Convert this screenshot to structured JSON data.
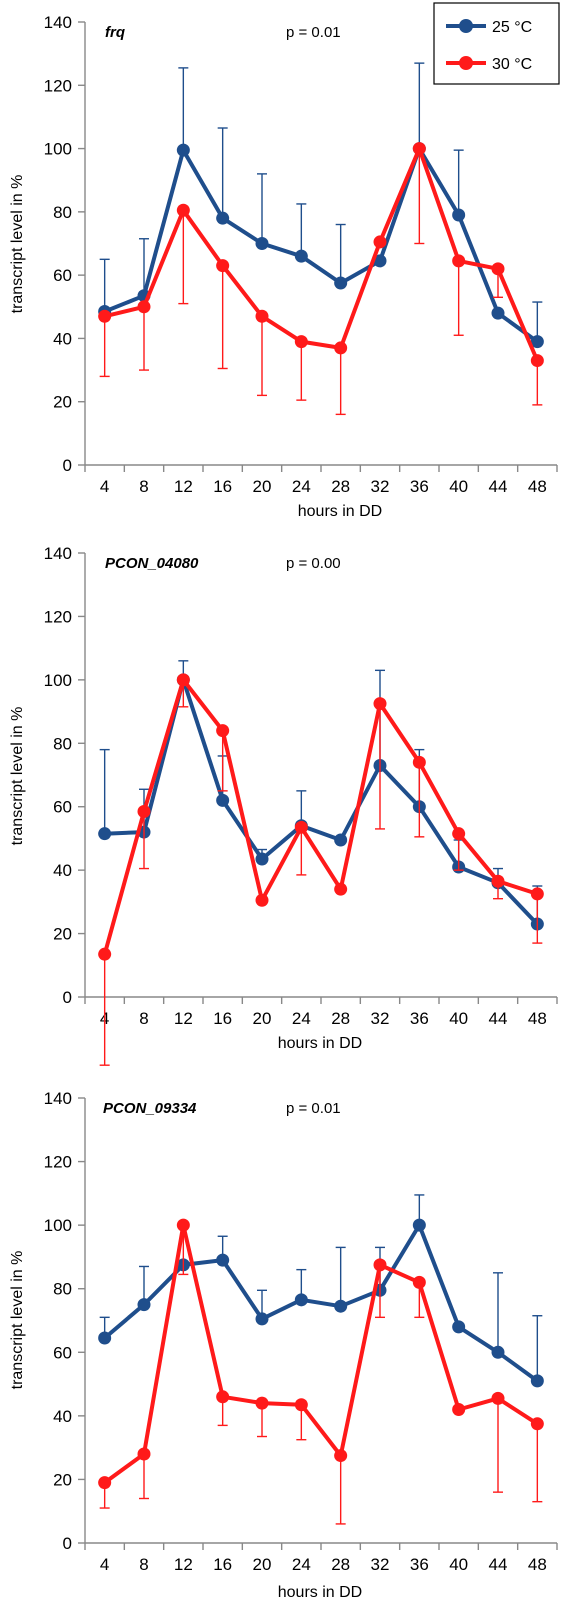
{
  "colors": {
    "s25": "#1f4e8c",
    "s30": "#ff1a1a",
    "axis": "#888888"
  },
  "legend": [
    {
      "name": "25 °C",
      "color": "#1f4e8c"
    },
    {
      "name": "30 °C",
      "color": "#ff1a1a"
    }
  ],
  "chart_data": [
    {
      "type": "line",
      "title": "frq",
      "annotation": "p = 0.01",
      "xlabel": "hours in DD",
      "ylabel": "transcript level in %",
      "x": [
        4,
        8,
        12,
        16,
        20,
        24,
        28,
        32,
        36,
        40,
        44,
        48
      ],
      "ylim": [
        0,
        140
      ],
      "yticks": [
        0,
        20,
        40,
        60,
        80,
        100,
        120,
        140
      ],
      "legend_position": "top-right",
      "series": [
        {
          "name": "25 °C",
          "values": [
            48.5,
            53.5,
            99.5,
            78,
            70,
            66,
            57.5,
            64.5,
            100,
            79,
            48,
            39
          ],
          "errors": [
            16.5,
            18,
            26,
            28.5,
            22,
            16.5,
            18.5,
            0,
            27,
            20.5,
            0,
            12.5
          ]
        },
        {
          "name": "30 °C",
          "values": [
            47,
            50,
            80.5,
            63,
            47,
            39,
            37,
            70.5,
            100,
            64.5,
            62,
            33
          ],
          "errors": [
            19,
            20,
            29.5,
            32.5,
            25,
            18.5,
            21,
            0,
            30,
            23.5,
            9,
            14
          ]
        }
      ]
    },
    {
      "type": "line",
      "title": "PCON_04080",
      "annotation": "p = 0.00",
      "xlabel": "hours in DD",
      "ylabel": "transcript level in %",
      "x": [
        4,
        8,
        12,
        16,
        20,
        24,
        28,
        32,
        36,
        40,
        44,
        48
      ],
      "ylim": [
        0,
        140
      ],
      "yticks": [
        0,
        20,
        40,
        60,
        80,
        100,
        120,
        140
      ],
      "series": [
        {
          "name": "25 °C",
          "values": [
            51.5,
            52,
            100,
            62,
            43.5,
            54,
            49.5,
            73,
            60,
            41,
            36,
            23
          ],
          "errors": [
            26.5,
            13.5,
            6,
            14,
            3,
            11,
            0,
            30,
            18,
            8.5,
            4.5,
            12
          ]
        },
        {
          "name": "30 °C",
          "values": [
            13.5,
            58.5,
            100,
            84,
            30.5,
            53.5,
            34,
            92.5,
            74,
            51.5,
            36.5,
            32.5
          ],
          "errors": [
            35,
            18,
            8.5,
            19,
            0,
            15,
            0,
            39.5,
            23.5,
            11.5,
            5.5,
            15.5
          ]
        }
      ]
    },
    {
      "type": "line",
      "title": "PCON_09334",
      "annotation": "p = 0.01",
      "xlabel": "hours in DD",
      "ylabel": "transcript level in %",
      "x": [
        4,
        8,
        12,
        16,
        20,
        24,
        28,
        32,
        36,
        40,
        44,
        48
      ],
      "ylim": [
        0,
        140
      ],
      "yticks": [
        0,
        20,
        40,
        60,
        80,
        100,
        120,
        140
      ],
      "series": [
        {
          "name": "25 °C",
          "values": [
            64.5,
            75,
            87.5,
            89,
            70.5,
            76.5,
            74.5,
            79.5,
            100,
            68,
            60,
            51
          ],
          "errors": [
            6.5,
            12,
            0,
            7.5,
            9,
            9.5,
            18.5,
            13.5,
            9.5,
            0,
            25,
            20.5
          ]
        },
        {
          "name": "30 °C",
          "values": [
            19,
            28,
            100,
            46,
            44,
            43.5,
            27.5,
            87.5,
            82,
            42,
            45.5,
            37.5
          ],
          "errors": [
            8,
            14,
            15.5,
            9,
            10.5,
            11,
            21.5,
            16.5,
            11,
            0,
            29.5,
            24.5
          ]
        }
      ]
    }
  ]
}
